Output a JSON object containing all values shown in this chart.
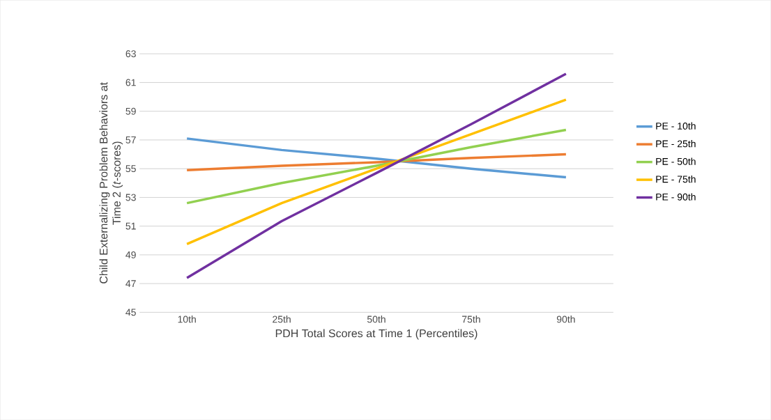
{
  "chart_data": {
    "type": "line",
    "xlabel": "PDH Total Scores at Time 1 (Percentiles)",
    "ylabel": "Child Externalizing Problem Behaviors at Time 2 (*t*-scores)",
    "categories": [
      "10th",
      "25th",
      "50th",
      "75th",
      "90th"
    ],
    "series": [
      {
        "name": "PE - 10th",
        "color": "#5b9bd5",
        "values": [
          57.1,
          56.3,
          55.7,
          55.0,
          54.4
        ]
      },
      {
        "name": "PE - 25th",
        "color": "#ed7d31",
        "values": [
          54.9,
          55.2,
          55.45,
          55.75,
          56.0
        ]
      },
      {
        "name": "PE - 50th",
        "color": "#92d050",
        "values": [
          52.6,
          54.0,
          55.2,
          56.5,
          57.7
        ]
      },
      {
        "name": "PE - 75th",
        "color": "#ffc000",
        "values": [
          49.75,
          52.6,
          55.0,
          57.4,
          59.8
        ]
      },
      {
        "name": "PE - 90th",
        "color": "#7030a0",
        "values": [
          47.4,
          51.35,
          54.7,
          58.1,
          61.6
        ]
      }
    ],
    "ylim": [
      45,
      63
    ],
    "yticks": [
      45,
      47,
      49,
      51,
      53,
      55,
      57,
      59,
      61,
      63
    ],
    "grid": "y",
    "legend": "right",
    "marker": "none",
    "line_style": "solid"
  }
}
